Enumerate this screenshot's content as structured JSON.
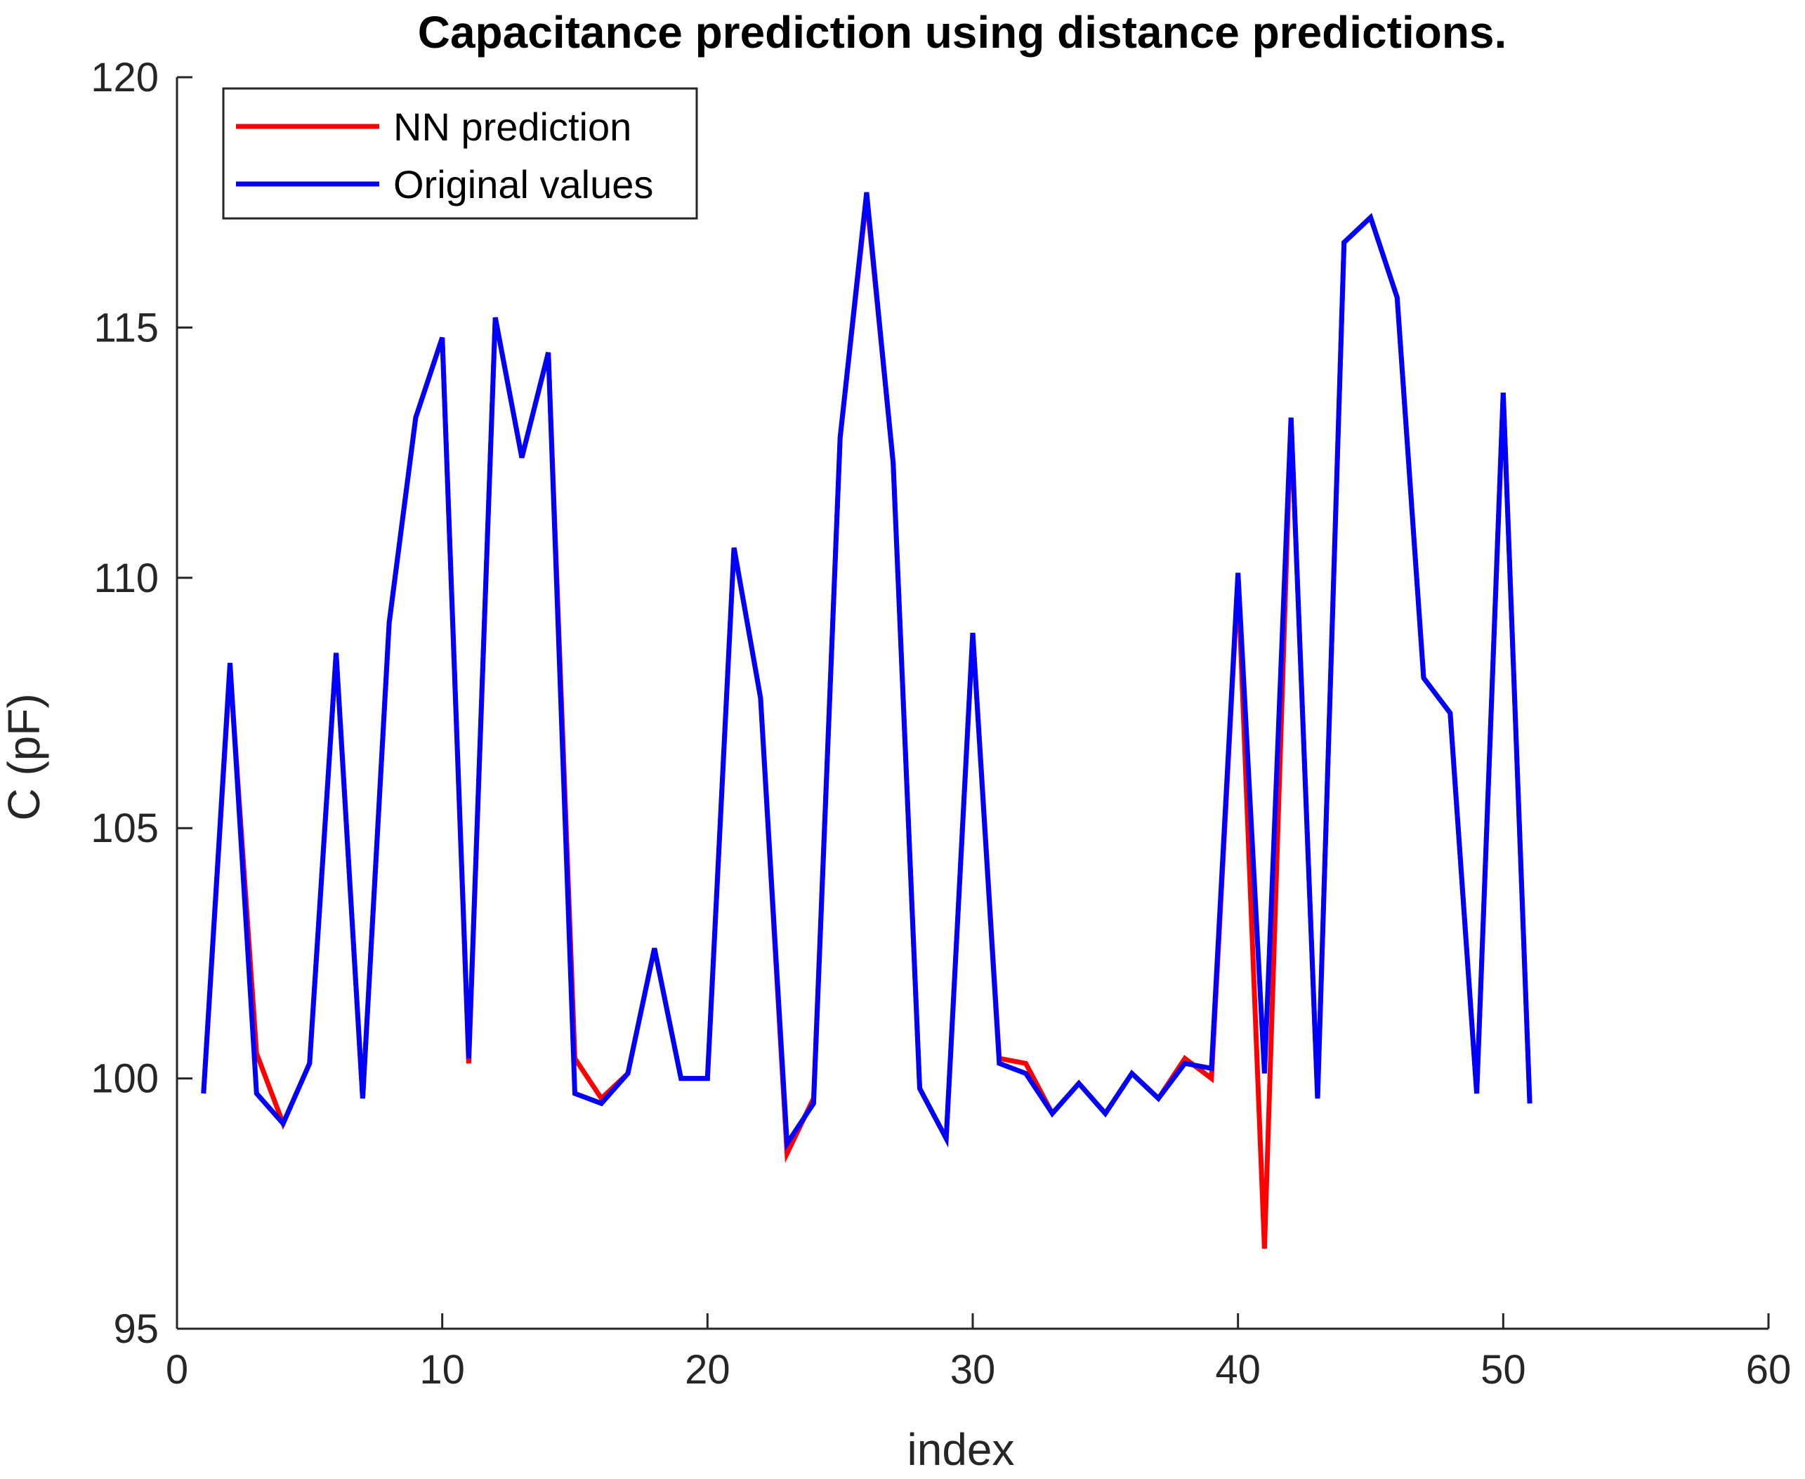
{
  "chart_data": {
    "type": "line",
    "title": "Capacitance prediction using distance predictions.",
    "xlabel": "index",
    "ylabel": "C (pF)",
    "xlim": [
      0,
      60
    ],
    "ylim": [
      95,
      120
    ],
    "xticks": [
      0,
      10,
      20,
      30,
      40,
      50,
      60
    ],
    "yticks": [
      95,
      100,
      105,
      110,
      115,
      120
    ],
    "xtick_labels": [
      "0",
      "10",
      "20",
      "30",
      "40",
      "50",
      "60"
    ],
    "ytick_labels": [
      "95",
      "100",
      "105",
      "110",
      "115",
      "120"
    ],
    "grid": false,
    "legend_position": "top-left",
    "x": [
      1,
      2,
      3,
      4,
      5,
      6,
      7,
      8,
      9,
      10,
      11,
      12,
      13,
      14,
      15,
      16,
      17,
      18,
      19,
      20,
      21,
      22,
      23,
      24,
      25,
      26,
      27,
      28,
      29,
      30,
      31,
      32,
      33,
      34,
      35,
      36,
      37,
      38,
      39,
      40,
      41,
      42,
      43,
      44,
      45,
      46,
      47,
      48,
      49,
      50,
      51
    ],
    "series": [
      {
        "name": "NN prediction",
        "color": "#ff0000",
        "values": [
          99.7,
          108.2,
          100.5,
          99.1,
          100.3,
          108.5,
          99.6,
          109.1,
          113.2,
          114.8,
          100.3,
          115.2,
          112.4,
          114.5,
          100.4,
          99.6,
          100.1,
          102.6,
          100.0,
          100.0,
          110.6,
          107.6,
          98.5,
          99.6,
          112.8,
          117.6,
          112.3,
          99.8,
          98.8,
          108.9,
          100.4,
          100.3,
          99.3,
          99.9,
          99.3,
          100.1,
          99.6,
          100.4,
          100.0,
          110.0,
          96.6,
          113.2,
          99.6,
          116.7,
          117.2,
          115.6,
          108.0,
          107.3,
          99.7,
          113.7,
          99.5
        ]
      },
      {
        "name": "Original values",
        "color": "#0000ff",
        "values": [
          99.7,
          108.3,
          99.7,
          99.1,
          100.3,
          108.5,
          99.6,
          109.1,
          113.2,
          114.8,
          100.4,
          115.2,
          112.4,
          114.5,
          99.7,
          99.5,
          100.1,
          102.6,
          100.0,
          100.0,
          110.6,
          107.6,
          98.7,
          99.5,
          112.8,
          117.7,
          112.3,
          99.8,
          98.8,
          108.9,
          100.3,
          100.1,
          99.3,
          99.9,
          99.3,
          100.1,
          99.6,
          100.3,
          100.2,
          110.1,
          100.1,
          113.2,
          99.6,
          116.7,
          117.2,
          115.6,
          108.0,
          107.3,
          99.7,
          113.7,
          99.5
        ]
      }
    ]
  }
}
